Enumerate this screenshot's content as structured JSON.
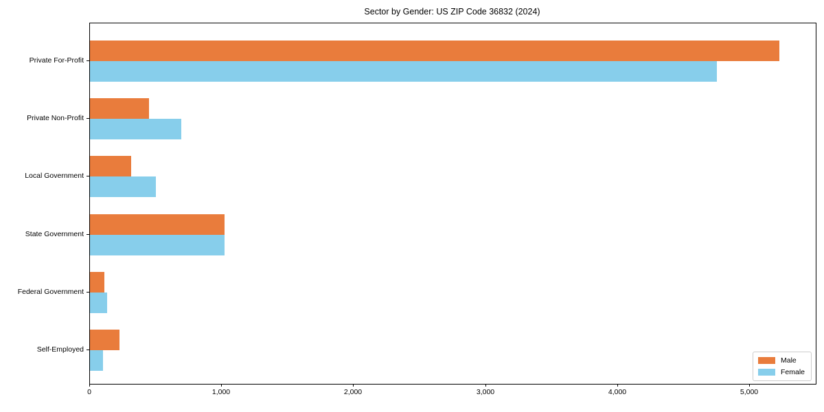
{
  "chart_data": {
    "type": "bar",
    "orientation": "horizontal",
    "title": "Sector by Gender: US ZIP Code 36832 (2024)",
    "categories": [
      "Private For-Profit",
      "Private Non-Profit",
      "Local Government",
      "State Government",
      "Federal Government",
      "Self-Employed"
    ],
    "series": [
      {
        "name": "Male",
        "color": "#E97C3C",
        "values": [
          5225,
          450,
          310,
          1020,
          110,
          225
        ]
      },
      {
        "name": "Female",
        "color": "#87CEEB",
        "values": [
          4750,
          690,
          500,
          1020,
          130,
          100
        ]
      }
    ],
    "xlabel": "",
    "ylabel": "",
    "xlim": [
      0,
      5500
    ],
    "x_ticks": [
      {
        "value": 0,
        "label": "0"
      },
      {
        "value": 1000,
        "label": "1,000"
      },
      {
        "value": 2000,
        "label": "2,000"
      },
      {
        "value": 3000,
        "label": "3,000"
      },
      {
        "value": 4000,
        "label": "4,000"
      },
      {
        "value": 5000,
        "label": "5,000"
      }
    ],
    "legend_position": "lower right",
    "grid": false
  }
}
